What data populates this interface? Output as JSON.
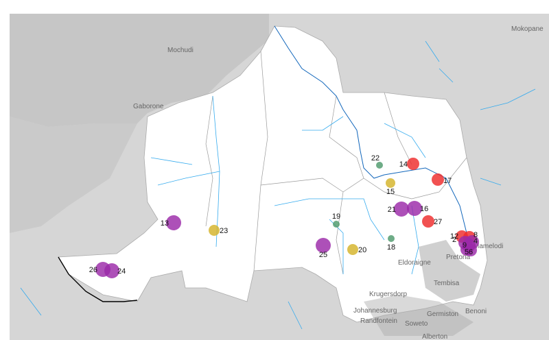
{
  "places": [
    {
      "name": "Mokopane"
    },
    {
      "name": "Mochudi"
    },
    {
      "name": "Gaborone"
    },
    {
      "name": "Eldoraigne"
    },
    {
      "name": "Pretoria"
    },
    {
      "name": "Mamelodi"
    },
    {
      "name": "Tembisa"
    },
    {
      "name": "Krugersdorp"
    },
    {
      "name": "Johannesburg"
    },
    {
      "name": "Randfontein"
    },
    {
      "name": "Soweto"
    },
    {
      "name": "Germiston"
    },
    {
      "name": "Benoni"
    },
    {
      "name": "Alberton"
    }
  ],
  "markers": [
    {
      "label": "13",
      "color": "#9b2aa8"
    },
    {
      "label": "23",
      "color": "#d4b32a"
    },
    {
      "label": "26",
      "color": "#9b2aa8"
    },
    {
      "label": "24",
      "color": "#9b2aa8"
    },
    {
      "label": "22",
      "color": "#4e9a6c"
    },
    {
      "label": "14",
      "color": "#ee2b2b"
    },
    {
      "label": "17",
      "color": "#ee2b2b"
    },
    {
      "label": "15",
      "color": "#d4b32a"
    },
    {
      "label": "21",
      "color": "#9b2aa8"
    },
    {
      "label": "16",
      "color": "#9b2aa8"
    },
    {
      "label": "27",
      "color": "#ee2b2b"
    },
    {
      "label": "19",
      "color": "#4e9a6c"
    },
    {
      "label": "18",
      "color": "#4e9a6c"
    },
    {
      "label": "25",
      "color": "#9b2aa8"
    },
    {
      "label": "20",
      "color": "#d4b32a"
    },
    {
      "label": "12",
      "color": "#ee2b2b"
    },
    {
      "label": "8",
      "color": "#ee2b2b"
    },
    {
      "label": "2",
      "color": "#9b2aa8"
    },
    {
      "label": "9",
      "color": "#9b2aa8"
    },
    {
      "label": "4",
      "color": "#9b2aa8"
    },
    {
      "label": "5",
      "color": "#9b2aa8"
    },
    {
      "label": "6",
      "color": "#9b2aa8"
    }
  ]
}
